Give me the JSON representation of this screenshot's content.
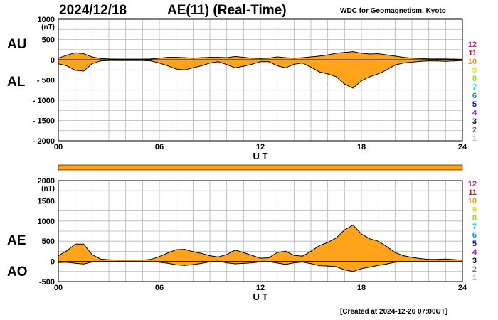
{
  "header": {
    "date": "2024/12/18",
    "title": "AE(11) (Real-Time)",
    "source": "WDC for Geomagnetism, Kyoto"
  },
  "footer": {
    "created": "[Created at 2024-12-26 07:00UT]"
  },
  "colors": {
    "fill": "#FFA31A",
    "line": "#000000",
    "grid": "#b4b4b4",
    "bar": "#FFA31A",
    "station_numbers": [
      "#FF00AA",
      "#FF0000",
      "#FF9900",
      "#E6E600",
      "#88E600",
      "#00DDCC",
      "#0088FF",
      "#0000FF",
      "#AA00FF",
      "#000000",
      "#777777",
      "#BBBBBB"
    ]
  },
  "station_numbers": [
    "12",
    "11",
    "10",
    "9",
    "8",
    "7",
    "6",
    "5",
    "4",
    "3",
    "2",
    "1"
  ],
  "chart_data": [
    {
      "type": "area",
      "panel": "top",
      "unit": "(nT)",
      "xlabel": "U T",
      "ylim": [
        -2000,
        1000
      ],
      "yticks": [
        "1000",
        "500",
        "0",
        "- 500",
        "- 1000",
        "- 1500",
        "- 2000"
      ],
      "xlim": [
        0,
        24
      ],
      "xticks": [
        "00",
        "06",
        "12",
        "18",
        "24"
      ],
      "grid": true,
      "series": [
        {
          "name": "AU",
          "x": [
            0,
            0.5,
            1,
            1.5,
            2,
            2.5,
            3,
            3.5,
            4,
            4.5,
            5,
            5.5,
            6,
            6.5,
            7,
            7.5,
            8,
            8.5,
            9,
            9.5,
            10,
            10.5,
            11,
            11.5,
            12,
            12.5,
            13,
            13.5,
            14,
            14.5,
            15,
            15.5,
            16,
            16.5,
            17,
            17.5,
            18,
            18.5,
            19,
            19.5,
            20,
            20.5,
            21,
            21.5,
            22,
            22.5,
            23,
            23.5,
            24
          ],
          "values": [
            40,
            110,
            170,
            150,
            70,
            30,
            20,
            15,
            15,
            15,
            15,
            20,
            40,
            60,
            60,
            50,
            40,
            50,
            60,
            60,
            50,
            80,
            60,
            40,
            30,
            40,
            70,
            50,
            40,
            50,
            70,
            90,
            120,
            160,
            180,
            200,
            160,
            140,
            150,
            120,
            90,
            60,
            40,
            30,
            20,
            20,
            20,
            15,
            10
          ]
        },
        {
          "name": "AL",
          "x": [
            0,
            0.5,
            1,
            1.5,
            2,
            2.5,
            3,
            3.5,
            4,
            4.5,
            5,
            5.5,
            6,
            6.5,
            7,
            7.5,
            8,
            8.5,
            9,
            9.5,
            10,
            10.5,
            11,
            11.5,
            12,
            12.5,
            13,
            13.5,
            14,
            14.5,
            15,
            15.5,
            16,
            16.5,
            17,
            17.5,
            18,
            18.5,
            19,
            19.5,
            20,
            20.5,
            21,
            21.5,
            22,
            22.5,
            23,
            23.5,
            24
          ],
          "values": [
            -100,
            -150,
            -260,
            -280,
            -100,
            -30,
            -20,
            -20,
            -20,
            -20,
            -20,
            -30,
            -80,
            -150,
            -230,
            -250,
            -200,
            -150,
            -80,
            -50,
            -120,
            -200,
            -160,
            -110,
            -50,
            -50,
            -150,
            -200,
            -110,
            -80,
            -180,
            -300,
            -350,
            -420,
            -600,
            -700,
            -520,
            -420,
            -350,
            -250,
            -130,
            -80,
            -60,
            -40,
            -30,
            -30,
            -40,
            -30,
            -20
          ]
        }
      ]
    },
    {
      "type": "area",
      "panel": "bottom",
      "unit": "(nT)",
      "xlabel": "U T",
      "ylim": [
        -500,
        2000
      ],
      "yticks": [
        "2000",
        "1500",
        "1000",
        "500",
        "0",
        "-500"
      ],
      "xlim": [
        0,
        24
      ],
      "xticks": [
        "00",
        "06",
        "12",
        "18",
        "24"
      ],
      "grid": true,
      "series": [
        {
          "name": "AE",
          "x": [
            0,
            0.5,
            1,
            1.5,
            2,
            2.5,
            3,
            3.5,
            4,
            4.5,
            5,
            5.5,
            6,
            6.5,
            7,
            7.5,
            8,
            8.5,
            9,
            9.5,
            10,
            10.5,
            11,
            11.5,
            12,
            12.5,
            13,
            13.5,
            14,
            14.5,
            15,
            15.5,
            16,
            16.5,
            17,
            17.5,
            18,
            18.5,
            19,
            19.5,
            20,
            20.5,
            21,
            21.5,
            22,
            22.5,
            23,
            23.5,
            24
          ],
          "values": [
            140,
            260,
            430,
            430,
            170,
            60,
            40,
            35,
            35,
            35,
            35,
            50,
            120,
            210,
            290,
            300,
            240,
            200,
            140,
            110,
            170,
            280,
            220,
            150,
            80,
            90,
            220,
            250,
            150,
            130,
            250,
            390,
            470,
            580,
            780,
            900,
            680,
            560,
            500,
            370,
            220,
            140,
            100,
            70,
            50,
            50,
            60,
            45,
            30
          ]
        },
        {
          "name": "AO",
          "x": [
            0,
            0.5,
            1,
            1.5,
            2,
            2.5,
            3,
            3.5,
            4,
            4.5,
            5,
            5.5,
            6,
            6.5,
            7,
            7.5,
            8,
            8.5,
            9,
            9.5,
            10,
            10.5,
            11,
            11.5,
            12,
            12.5,
            13,
            13.5,
            14,
            14.5,
            15,
            15.5,
            16,
            16.5,
            17,
            17.5,
            18,
            18.5,
            19,
            19.5,
            20,
            20.5,
            21,
            21.5,
            22,
            22.5,
            23,
            23.5,
            24
          ],
          "values": [
            -30,
            -20,
            -45,
            -65,
            -15,
            0,
            0,
            -3,
            -3,
            -3,
            -3,
            -5,
            -20,
            -45,
            -85,
            -100,
            -80,
            -50,
            -10,
            5,
            -35,
            -60,
            -50,
            -35,
            -10,
            -5,
            -40,
            -75,
            -35,
            -15,
            -55,
            -105,
            -115,
            -130,
            -210,
            -250,
            -180,
            -140,
            -100,
            -65,
            -20,
            -10,
            -10,
            -5,
            -5,
            -5,
            -10,
            -8,
            -5
          ]
        }
      ]
    }
  ]
}
